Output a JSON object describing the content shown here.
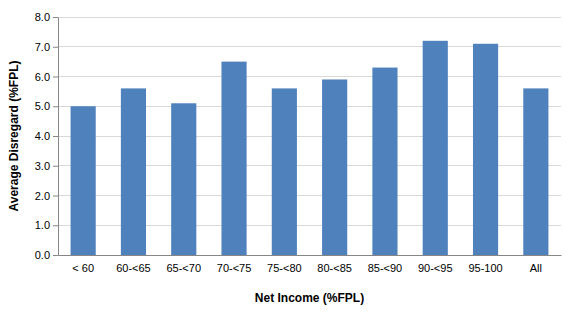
{
  "chart_data": {
    "type": "bar",
    "x_label": "Net Income (%FPL)",
    "y_label": "Average Disregard (%FPL)",
    "categories": [
      "< 60",
      "60-<65",
      "65-<70",
      "70-<75",
      "75-<80",
      "80-<85",
      "85-<90",
      "90-<95",
      "95-100",
      "All"
    ],
    "values": [
      5.0,
      5.6,
      5.1,
      6.5,
      5.6,
      5.9,
      6.3,
      7.2,
      7.1,
      5.6
    ],
    "color": "#4f81bd",
    "ylim": [
      0,
      8
    ],
    "yticks": [
      {
        "value": 0,
        "label": "0.0"
      },
      {
        "value": 1,
        "label": "1.0"
      },
      {
        "value": 2,
        "label": "2.0"
      },
      {
        "value": 3,
        "label": "3.0"
      },
      {
        "value": 4,
        "label": "4.0"
      },
      {
        "value": 5,
        "label": "5.0"
      },
      {
        "value": 6,
        "label": "6.0"
      },
      {
        "value": 7,
        "label": "7.0"
      },
      {
        "value": 8,
        "label": "8.0"
      }
    ],
    "grid": true
  }
}
